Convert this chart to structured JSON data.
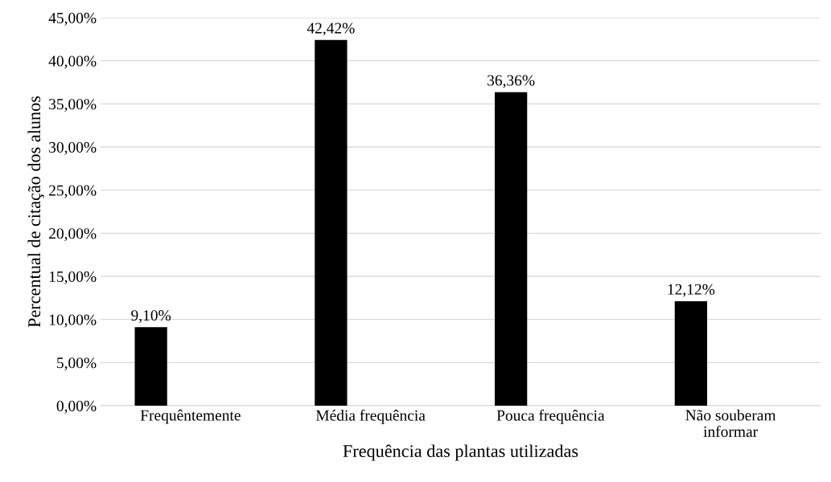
{
  "chart_data": {
    "type": "bar",
    "xlabel": "Frequência das plantas utilizadas",
    "ylabel": "Percentual de citação dos alunos",
    "categories": [
      "Frequêntemente",
      "Média frequência",
      "Pouca frequência",
      "Não souberam\ninformar"
    ],
    "values": [
      9.1,
      42.42,
      36.36,
      12.12
    ],
    "color": "#000000",
    "value_labels": [
      "9,10%",
      "42,42%",
      "36,36%",
      "12,12%"
    ],
    "ylim": [
      0,
      45
    ],
    "yticks": [
      {
        "value": 0,
        "label": "0,00%"
      },
      {
        "value": 5,
        "label": "5,00%"
      },
      {
        "value": 10,
        "label": "10,00%"
      },
      {
        "value": 15,
        "label": "15,00%"
      },
      {
        "value": 20,
        "label": "20,00%"
      },
      {
        "value": 25,
        "label": "25,00%"
      },
      {
        "value": 30,
        "label": "30,00%"
      },
      {
        "value": 35,
        "label": "35,00%"
      },
      {
        "value": 40,
        "label": "40,00%"
      },
      {
        "value": 45,
        "label": "45,00%"
      }
    ],
    "grid": "y"
  }
}
